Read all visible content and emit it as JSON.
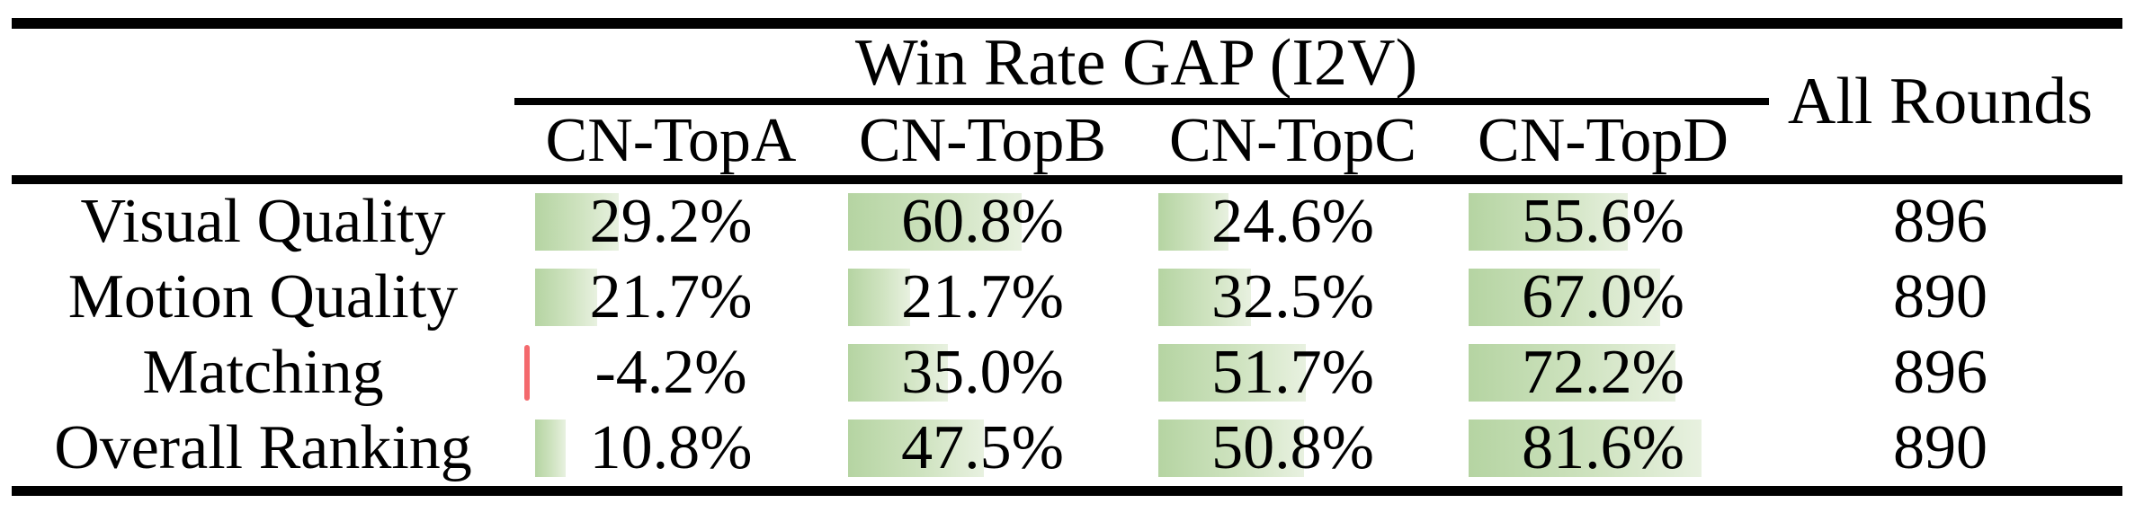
{
  "table": {
    "span_header": "Win Rate GAP (I2V)",
    "all_rounds_header": "All Rounds",
    "columns": [
      "CN-TopA",
      "CN-TopB",
      "CN-TopC",
      "CN-TopD"
    ],
    "rows": [
      {
        "label": "Visual Quality",
        "values": [
          29.2,
          60.8,
          24.6,
          55.6
        ],
        "display": [
          "29.2%",
          "60.8%",
          "24.6%",
          "55.6%"
        ],
        "all_rounds": "896"
      },
      {
        "label": "Motion Quality",
        "values": [
          21.7,
          21.7,
          32.5,
          67.0
        ],
        "display": [
          "21.7%",
          "21.7%",
          "32.5%",
          "67.0%"
        ],
        "all_rounds": "890"
      },
      {
        "label": "Matching",
        "values": [
          -4.2,
          35.0,
          51.7,
          72.2
        ],
        "display": [
          "-4.2%",
          "35.0%",
          "51.7%",
          "72.2%"
        ],
        "all_rounds": "896"
      },
      {
        "label": "Overall Ranking",
        "values": [
          10.8,
          47.5,
          50.8,
          81.6
        ],
        "display": [
          "10.8%",
          "47.5%",
          "50.8%",
          "81.6%"
        ],
        "all_rounds": "890"
      }
    ]
  },
  "colors": {
    "bar_positive_start": "#b5d4a2",
    "bar_positive_end": "#e8f1e0",
    "bar_negative": "#f4696d",
    "rule": "#000000",
    "background": "#ffffff"
  },
  "chart_data": {
    "type": "table",
    "title": "Win Rate GAP (I2V)",
    "categories": [
      "CN-TopA",
      "CN-TopB",
      "CN-TopC",
      "CN-TopD"
    ],
    "series": [
      {
        "name": "Visual Quality",
        "values": [
          29.2,
          60.8,
          24.6,
          55.6
        ],
        "all_rounds": 896
      },
      {
        "name": "Motion Quality",
        "values": [
          21.7,
          21.7,
          32.5,
          67.0
        ],
        "all_rounds": 890
      },
      {
        "name": "Matching",
        "values": [
          -4.2,
          35.0,
          51.7,
          72.2
        ],
        "all_rounds": 896
      },
      {
        "name": "Overall Ranking",
        "values": [
          10.8,
          47.5,
          50.8,
          81.6
        ],
        "all_rounds": 890
      }
    ],
    "value_unit": "%",
    "bar_scale_max": 100,
    "legend_position": "none",
    "grid": false
  }
}
